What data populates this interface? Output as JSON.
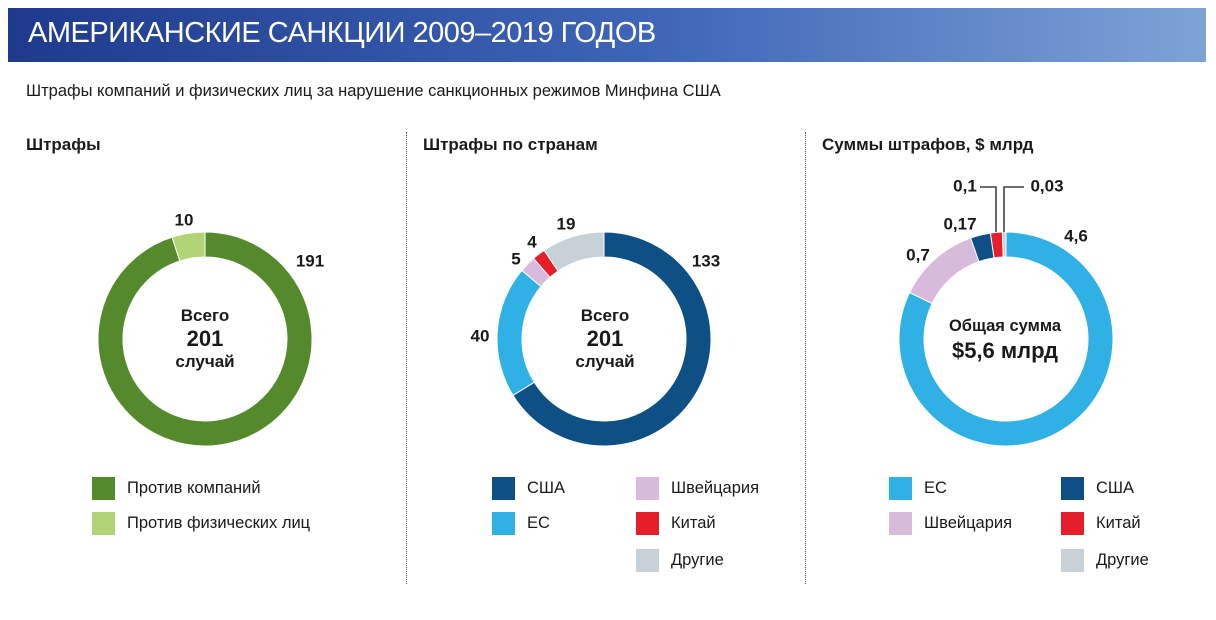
{
  "header": {
    "title": "АМЕРИКАНСКИЕ САНКЦИИ 2009–2019 ГОДОВ"
  },
  "subtitle": "Штрафы компаний и физических лиц за нарушение санкционных режимов Минфина США",
  "colors": {
    "green_dark": "#548a2b",
    "green_light": "#b2d476",
    "blue_dark": "#0e4f86",
    "blue_light": "#2fb1e6",
    "lilac": "#d8bbdb",
    "red": "#e51e2b",
    "grey": "#c9d1d8"
  },
  "panels": {
    "p1": {
      "title": "Штрафы",
      "center": {
        "line1": "Всего",
        "line2": "201",
        "line3": "случай"
      },
      "legend": [
        "Против компаний",
        "Против физических лиц"
      ]
    },
    "p2": {
      "title": "Штрафы по странам",
      "center": {
        "line1": "Всего",
        "line2": "201",
        "line3": "случай"
      },
      "legend": [
        "США",
        "ЕС",
        "Швейцария",
        "Китай",
        "Другие"
      ]
    },
    "p3": {
      "title": "Суммы штрафов, $ млрд",
      "center": {
        "line1": "Общая сумма",
        "line2": "$5,6 млрд"
      },
      "legend": [
        "ЕС",
        "США",
        "Швейцария",
        "Китай",
        "Другие"
      ]
    }
  },
  "chart_data": [
    {
      "type": "pie",
      "title": "Штрафы",
      "series": [
        {
          "values": [
            191,
            10
          ]
        }
      ],
      "categories": [
        "Против компаний",
        "Против физических лиц"
      ],
      "labels": [
        "191",
        "10"
      ]
    },
    {
      "type": "pie",
      "title": "Штрафы по странам",
      "series": [
        {
          "values": [
            133,
            40,
            5,
            4,
            19
          ]
        }
      ],
      "categories": [
        "США",
        "ЕС",
        "Швейцария",
        "Китай",
        "Другие"
      ],
      "labels": [
        "133",
        "40",
        "5",
        "4",
        "19"
      ]
    },
    {
      "type": "pie",
      "title": "Суммы штрафов, $ млрд",
      "series": [
        {
          "values": [
            4.6,
            0.7,
            0.17,
            0.1,
            0.03
          ]
        }
      ],
      "categories": [
        "ЕС",
        "Швейцария",
        "США",
        "Китай",
        "Другие"
      ],
      "labels": [
        "4,6",
        "0,7",
        "0,17",
        "0,1",
        "0,03"
      ]
    }
  ]
}
